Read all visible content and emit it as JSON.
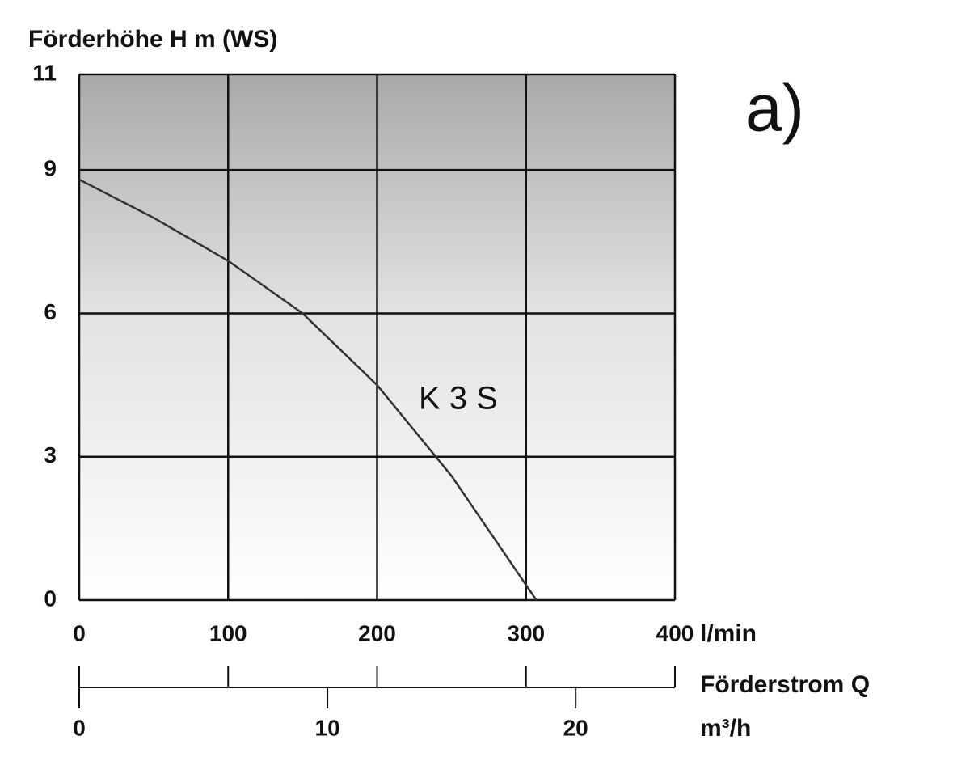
{
  "chart_data": {
    "type": "line",
    "y_label": "Förderhöhe H m (WS)",
    "x_label": "l/min",
    "x2_title": "Förderstrom Q",
    "x2_label": "m³/h",
    "annotation": "a)",
    "x": [
      0,
      50,
      100,
      150,
      200,
      250,
      307
    ],
    "series": [
      {
        "name": "K 3 S",
        "color": "#333333",
        "values": [
          8.8,
          8.0,
          7.1,
          6.0,
          4.5,
          2.6,
          0
        ]
      }
    ],
    "xlim": [
      0,
      400
    ],
    "xticks": [
      0,
      100,
      200,
      300,
      400
    ],
    "ylim": [
      0,
      11
    ],
    "yticks": [
      0,
      3,
      6,
      9,
      11
    ],
    "x2lim": [
      0,
      24
    ],
    "x2ticks": [
      0,
      10,
      20
    ],
    "grid": true
  }
}
